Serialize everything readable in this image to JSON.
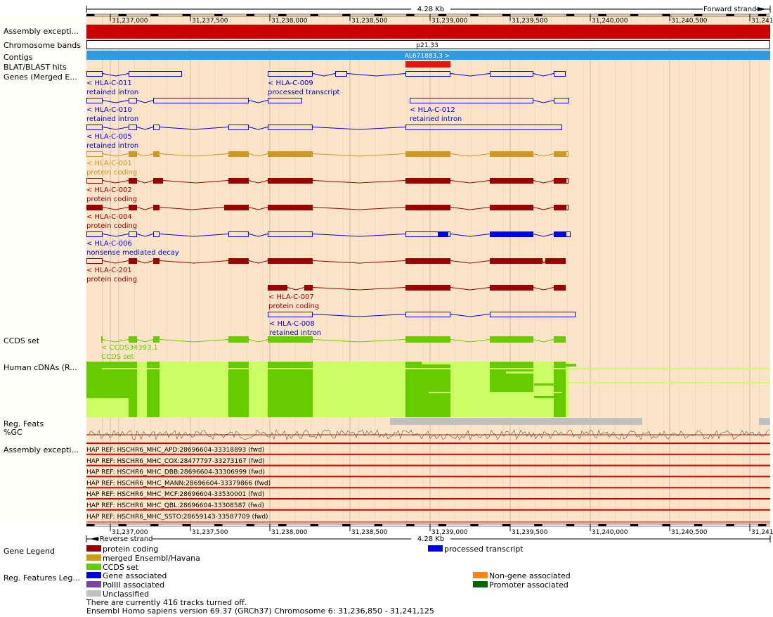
{
  "scale": {
    "top_title": "4.28 Kb",
    "forward_label": "Forward strand",
    "bottom_title": "4.28 Kb",
    "reverse_label": "Reverse strand",
    "ticks": [
      "31,237,000",
      "31,237,500",
      "31,238,000",
      "31,238,500",
      "31,239,000",
      "31,239,500",
      "31,240,000",
      "31,240,500",
      "31,241"
    ]
  },
  "tracks": {
    "assembly_exceptions": "Assembly excepti...",
    "chromosome_bands": "Chromosome bands",
    "contigs": "Contigs",
    "blat": "BLAT/BLAST hits",
    "genes": "Genes (Merged E...",
    "ccds": "CCDS set",
    "cdnas": "Human cDNAs (R...",
    "reg_feats": "Reg. Feats",
    "gc": "%GC",
    "assembly_exceptions_2": "Assembly excepti...",
    "gene_legend": "Gene Legend",
    "reg_legend": "Reg. Features Leg..."
  },
  "band_label": "p21.33",
  "contig_label": "AL671883.3 >",
  "genes": [
    {
      "name": "< HLA-C-011",
      "type": "retained intron"
    },
    {
      "name": "< HLA-C-009",
      "type": "processed transcript"
    },
    {
      "name": "< HLA-C-010",
      "type": "retained intron"
    },
    {
      "name": "< HLA-C-012",
      "type": "retained intron"
    },
    {
      "name": "< HLA-C-005",
      "type": "retained intron"
    },
    {
      "name": "< HLA-C-001",
      "type": "protein coding"
    },
    {
      "name": "< HLA-C-002",
      "type": "protein coding"
    },
    {
      "name": "< HLA-C-004",
      "type": "protein coding"
    },
    {
      "name": "< HLA-C-006",
      "type": "nonsense mediated decay"
    },
    {
      "name": "< HLA-C-201",
      "type": "protein coding"
    },
    {
      "name": "< HLA-C-007",
      "type": "protein coding"
    },
    {
      "name": "< HLA-C-008",
      "type": "retained intron"
    }
  ],
  "ccds": {
    "name": "< CCDS34393.1",
    "type": "CCDS set"
  },
  "hap_refs": [
    "HAP REF: HSCHR6_MHC_APD:28696604-33318893 (fwd)",
    "HAP REF: HSCHR6_MHC_COX:28477797-33273167 (fwd)",
    "HAP REF: HSCHR6_MHC_DBB:28696604-33306999 (fwd)",
    "HAP REF: HSCHR6_MHC_MANN:28696604-33379866 (fwd)",
    "HAP REF: HSCHR6_MHC_MCF:28696604-33530001 (fwd)",
    "HAP REF: HSCHR6_MHC_QBL:28696604-33308587 (fwd)",
    "HAP REF: HSCHR6_MHC_SSTO:28659143-33587709 (fwd)"
  ],
  "gene_legend": [
    {
      "label": "protein coding",
      "color": "#990000"
    },
    {
      "label": "merged Ensembl/Havana",
      "color": "#cc9922"
    },
    {
      "label": "CCDS set",
      "color": "#66cc00"
    },
    {
      "label": "processed transcript",
      "color": "#0000ee"
    }
  ],
  "reg_legend": [
    {
      "label": "Gene associated",
      "color": "#0000ee"
    },
    {
      "label": "PolIII associated",
      "color": "#7744aa"
    },
    {
      "label": "Unclassified",
      "color": "#c0c0c0"
    },
    {
      "label": "Non-gene  associated",
      "color": "#ff8800"
    },
    {
      "label": "Promoter associated",
      "color": "#006600"
    }
  ],
  "footer": {
    "tracks_off": "There are currently 416 tracks turned off.",
    "version": "Ensembl Homo sapiens version 69.37 (GRCh37) Chromosome 6: 31,236,850 - 31,241,125"
  },
  "colors": {
    "panel_bg": "#fce4c8",
    "assembly_red": "#cc0000",
    "contig_blue": "#3399dd",
    "protein_coding": "#990000",
    "merged": "#cc9922",
    "processed": "#0000ee",
    "ccds": "#66cc00",
    "cdna_light": "#ccff66"
  }
}
